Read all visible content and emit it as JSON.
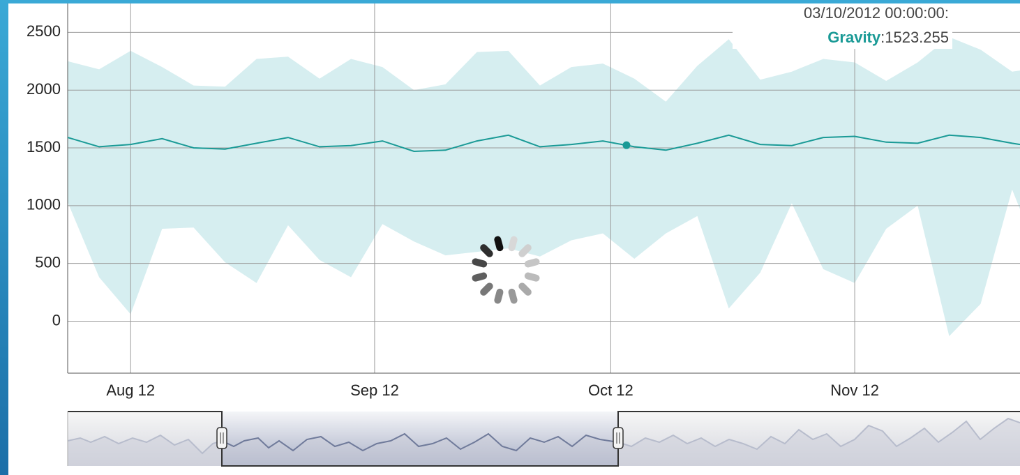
{
  "chart_data": {
    "type": "line",
    "xlim": [
      "2012-07-24",
      "2012-11-22"
    ],
    "ylim": [
      -450,
      2750
    ],
    "yticks": [
      0,
      500,
      1000,
      1500,
      2000,
      2500
    ],
    "xticks": [
      {
        "value": "2012-08-01",
        "label": "Aug 12"
      },
      {
        "value": "2012-09-01",
        "label": "Sep 12"
      },
      {
        "value": "2012-10-01",
        "label": "Oct 12"
      },
      {
        "value": "2012-11-01",
        "label": "Nov 12"
      }
    ],
    "grid": true,
    "x": [
      "2012-07-24",
      "2012-07-28",
      "2012-08-01",
      "2012-08-05",
      "2012-08-09",
      "2012-08-13",
      "2012-08-17",
      "2012-08-21",
      "2012-08-25",
      "2012-08-29",
      "2012-09-02",
      "2012-09-06",
      "2012-09-10",
      "2012-09-14",
      "2012-09-18",
      "2012-09-22",
      "2012-09-26",
      "2012-09-30",
      "2012-10-04",
      "2012-10-08",
      "2012-10-12",
      "2012-10-16",
      "2012-10-20",
      "2012-10-24",
      "2012-10-28",
      "2012-11-01",
      "2012-11-05",
      "2012-11-09",
      "2012-11-13",
      "2012-11-17",
      "2012-11-21",
      "2012-11-22"
    ],
    "series": [
      {
        "name": "Gravity",
        "color": "#1a9a96",
        "band_color": "#d6eef0",
        "values": [
          1590,
          1510,
          1530,
          1580,
          1500,
          1490,
          1540,
          1590,
          1510,
          1520,
          1560,
          1470,
          1480,
          1560,
          1610,
          1510,
          1530,
          1560,
          1510,
          1480,
          1540,
          1610,
          1530,
          1520,
          1590,
          1600,
          1550,
          1540,
          1610,
          1590,
          1540,
          1530
        ],
        "low": [
          1030,
          380,
          60,
          800,
          810,
          510,
          330,
          830,
          530,
          380,
          840,
          690,
          570,
          600,
          630,
          560,
          700,
          760,
          540,
          760,
          910,
          110,
          420,
          1020,
          450,
          330,
          800,
          1000,
          -130,
          150,
          1140,
          970
        ],
        "high": [
          2250,
          2180,
          2340,
          2200,
          2040,
          2030,
          2270,
          2290,
          2100,
          2270,
          2200,
          2000,
          2050,
          2330,
          2340,
          2040,
          2200,
          2230,
          2100,
          1900,
          2210,
          2440,
          2090,
          2160,
          2270,
          2240,
          2080,
          2240,
          2460,
          2350,
          2160,
          2170
        ]
      }
    ],
    "highlight": {
      "x": "2012-10-03",
      "value": 1523.255,
      "label": "03/10/2012 00:00:00:",
      "value_label": ":1523.255"
    }
  }
}
